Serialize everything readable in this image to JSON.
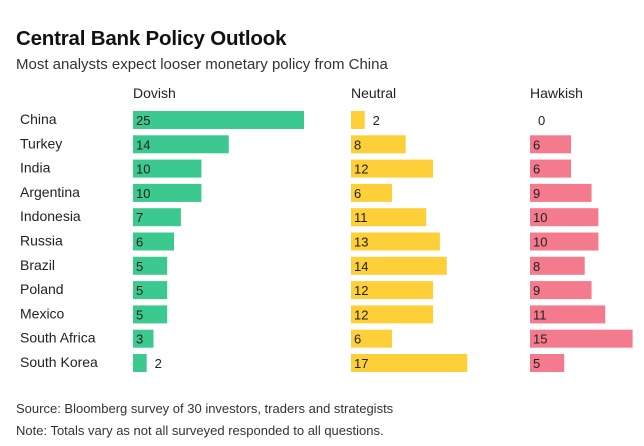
{
  "title": "Central Bank Policy Outlook",
  "subtitle": "Most analysts expect looser monetary policy from China",
  "chart_data": {
    "type": "bar",
    "layout": "small-multiples-horizontal",
    "categories": [
      "China",
      "Turkey",
      "India",
      "Argentina",
      "Indonesia",
      "Russia",
      "Brazil",
      "Poland",
      "Mexico",
      "South Africa",
      "South Korea"
    ],
    "series": [
      {
        "name": "Dovish",
        "color": "#3cc98f",
        "values": [
          25,
          14,
          10,
          10,
          7,
          6,
          5,
          5,
          5,
          3,
          2
        ]
      },
      {
        "name": "Neutral",
        "color": "#fdd03a",
        "values": [
          2,
          8,
          12,
          6,
          11,
          13,
          14,
          12,
          12,
          6,
          17
        ]
      },
      {
        "name": "Hawkish",
        "color": "#f47a8e",
        "values": [
          0,
          6,
          6,
          9,
          10,
          10,
          8,
          9,
          11,
          15,
          5
        ]
      }
    ],
    "data_labels": true,
    "legend": "column headers"
  },
  "footer": {
    "source": "Source: Bloomberg survey of 30 investors, traders and strategists",
    "note": "Note: Totals vary as not all surveyed responded to all questions."
  }
}
